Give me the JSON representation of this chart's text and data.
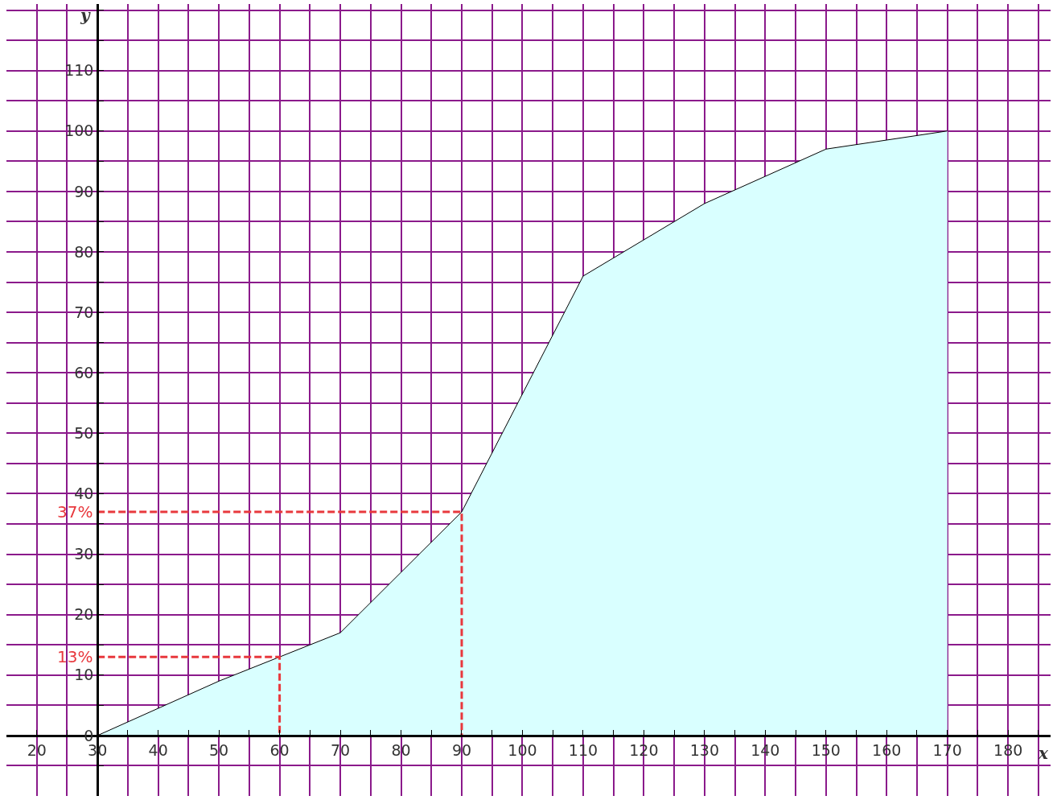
{
  "chart_data": {
    "type": "area",
    "xlabel": "x",
    "ylabel": "y",
    "xlim": [
      15,
      187
    ],
    "ylim": [
      -10,
      121
    ],
    "xticks": [
      20,
      {
        "value": 25,
        "label": null
      },
      30,
      {
        "value": 35,
        "label": null
      },
      40,
      {
        "value": 45,
        "label": null
      },
      50,
      {
        "value": 55,
        "label": null
      },
      60,
      {
        "value": 65,
        "label": null
      },
      70,
      {
        "value": 75,
        "label": null
      },
      80,
      {
        "value": 85,
        "label": null
      },
      90,
      {
        "value": 95,
        "label": null
      },
      100,
      {
        "value": 105,
        "label": null
      },
      110,
      {
        "value": 115,
        "label": null
      },
      120,
      {
        "value": 125,
        "label": null
      },
      130,
      {
        "value": 135,
        "label": null
      },
      140,
      {
        "value": 145,
        "label": null
      },
      150,
      {
        "value": 155,
        "label": null
      },
      160,
      {
        "value": 165,
        "label": null
      },
      170,
      {
        "value": 175,
        "label": null
      },
      180,
      {
        "value": 185,
        "label": null
      }
    ],
    "yticks": [
      {
        "value": -5,
        "label": null
      },
      0,
      {
        "value": 5,
        "label": null
      },
      10,
      {
        "value": 15,
        "label": null
      },
      20,
      {
        "value": 25,
        "label": null
      },
      30,
      {
        "value": 35,
        "label": null
      },
      40,
      {
        "value": 45,
        "label": null
      },
      50,
      {
        "value": 55,
        "label": null
      },
      60,
      {
        "value": 65,
        "label": null
      },
      70,
      {
        "value": 75,
        "label": null
      },
      80,
      {
        "value": 85,
        "label": null
      },
      90,
      {
        "value": 95,
        "label": null
      },
      100,
      {
        "value": 105,
        "label": null
      },
      110,
      {
        "value": 115,
        "label": null
      },
      {
        "value": 120,
        "label": null
      }
    ],
    "grid": true,
    "series": [
      {
        "color": "#d9ffff",
        "x": [
          30,
          50,
          60,
          70,
          80,
          90,
          110,
          120,
          130,
          140,
          150,
          160,
          170
        ],
        "values": [
          0,
          9,
          13,
          17,
          27,
          37,
          76,
          82,
          88,
          92.5,
          97,
          98.5,
          100
        ]
      },
      {
        "type": "line",
        "color": "#e8383d",
        "line_style": "dashed",
        "x": [
          30,
          60,
          60
        ],
        "values": [
          13,
          13,
          0
        ]
      },
      {
        "type": "line",
        "color": "#e8383d",
        "line_style": "dashed",
        "x": [
          30,
          90,
          90
        ],
        "values": [
          37,
          37,
          0
        ]
      }
    ],
    "annotations": [
      {
        "text": "13%",
        "x": 30,
        "y": 13
      },
      {
        "text": "37%",
        "x": 30,
        "y": 37
      }
    ]
  }
}
